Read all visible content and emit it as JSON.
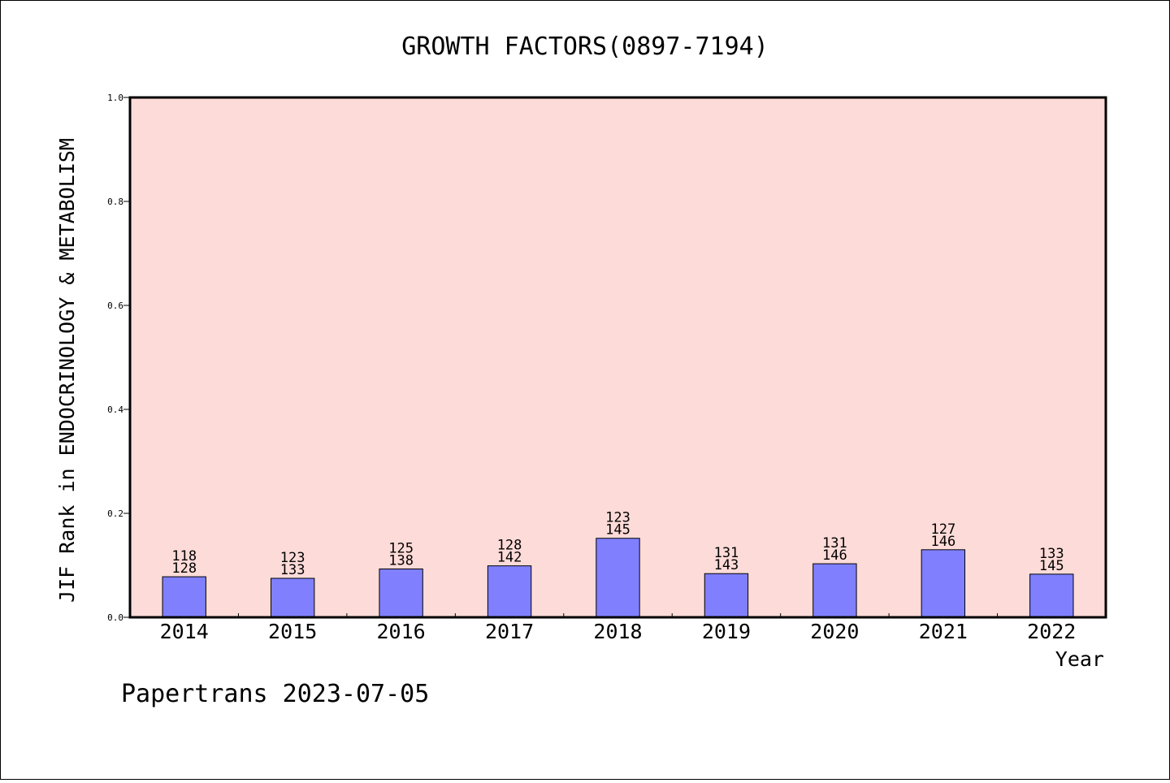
{
  "chart_data": {
    "type": "bar",
    "title": "GROWTH FACTORS(0897-7194)",
    "xlabel": "Year",
    "ylabel": "JIF Rank in ENDOCRINOLOGY & METABOLISM",
    "ylim": [
      0.0,
      1.0
    ],
    "yticks": [
      "0.0",
      "0.2",
      "0.4",
      "0.6",
      "0.8",
      "1.0"
    ],
    "categories": [
      "2014",
      "2015",
      "2016",
      "2017",
      "2018",
      "2019",
      "2020",
      "2021",
      "2022"
    ],
    "values": [
      0.078,
      0.075,
      0.093,
      0.099,
      0.152,
      0.084,
      0.103,
      0.13,
      0.083
    ],
    "rank_labels": [
      {
        "rank": "118",
        "total": "128"
      },
      {
        "rank": "123",
        "total": "133"
      },
      {
        "rank": "125",
        "total": "138"
      },
      {
        "rank": "128",
        "total": "142"
      },
      {
        "rank": "123",
        "total": "145"
      },
      {
        "rank": "131",
        "total": "143"
      },
      {
        "rank": "131",
        "total": "146"
      },
      {
        "rank": "127",
        "total": "146"
      },
      {
        "rank": "133",
        "total": "145"
      }
    ],
    "grid": false,
    "colors": {
      "plot_background": "#fddbd8",
      "bar_fill": "#8080ff",
      "bar_edge": "#000000"
    }
  },
  "footer": "Papertrans 2023-07-05"
}
